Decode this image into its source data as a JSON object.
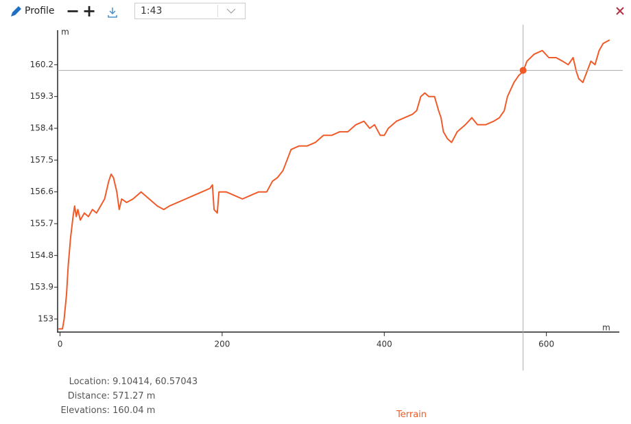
{
  "toolbar": {
    "title": "Profile",
    "scale": "1:43"
  },
  "chart_data": {
    "type": "line",
    "ylabel": "m",
    "xlabel": "m",
    "x": [
      -2,
      3,
      5,
      8,
      10,
      13,
      16,
      18,
      20,
      22,
      25,
      30,
      35,
      40,
      45,
      50,
      55,
      60,
      63,
      66,
      70,
      73,
      76,
      82,
      90,
      100,
      110,
      120,
      128,
      135,
      145,
      155,
      165,
      175,
      185,
      188,
      190,
      194,
      196,
      205,
      215,
      225,
      235,
      245,
      255,
      262,
      268,
      275,
      280,
      285,
      295,
      305,
      315,
      325,
      335,
      345,
      355,
      365,
      375,
      382,
      388,
      395,
      400,
      405,
      415,
      425,
      435,
      440,
      445,
      450,
      455,
      462,
      467,
      470,
      473,
      478,
      483,
      490,
      500,
      508,
      515,
      525,
      535,
      542,
      548,
      552,
      560,
      566,
      571,
      576,
      585,
      595,
      603,
      612,
      620,
      627,
      633,
      637,
      640,
      645,
      650,
      655,
      660,
      665,
      670,
      678
    ],
    "series": [
      {
        "name": "Terrain",
        "color": "#f05a28",
        "values": [
          152.72,
          152.72,
          153.0,
          153.7,
          154.5,
          155.3,
          155.9,
          156.2,
          155.9,
          156.1,
          155.8,
          156.0,
          155.9,
          156.1,
          156.0,
          156.2,
          156.4,
          156.9,
          157.1,
          157.0,
          156.6,
          156.1,
          156.4,
          156.3,
          156.4,
          156.6,
          156.4,
          156.2,
          156.1,
          156.2,
          156.3,
          156.4,
          156.5,
          156.6,
          156.7,
          156.8,
          156.1,
          156.0,
          156.6,
          156.6,
          156.5,
          156.4,
          156.5,
          156.6,
          156.6,
          156.9,
          157.0,
          157.2,
          157.5,
          157.8,
          157.9,
          157.9,
          158.0,
          158.2,
          158.2,
          158.3,
          158.3,
          158.5,
          158.6,
          158.4,
          158.5,
          158.2,
          158.2,
          158.4,
          158.6,
          158.7,
          158.8,
          158.9,
          159.3,
          159.4,
          159.3,
          159.3,
          158.9,
          158.7,
          158.3,
          158.1,
          158.0,
          158.3,
          158.5,
          158.7,
          158.5,
          158.5,
          158.6,
          158.7,
          158.9,
          159.3,
          159.7,
          159.9,
          160.0,
          160.3,
          160.5,
          160.6,
          160.4,
          160.4,
          160.3,
          160.2,
          160.4,
          160.0,
          159.8,
          159.7,
          160.0,
          160.3,
          160.2,
          160.6,
          160.8,
          160.9
        ]
      }
    ],
    "xlim": [
      -3,
      690
    ],
    "ylim": [
      152.65,
      161.1
    ],
    "xticks": [
      0,
      200,
      400,
      600
    ],
    "yticks": [
      153,
      153.9,
      154.8,
      155.7,
      156.6,
      157.5,
      158.4,
      159.3,
      160.2
    ],
    "cursor": {
      "x": 571.27,
      "y": 160.04
    }
  },
  "info": {
    "location_label": "Location:",
    "location": "9.10414, 60.57043",
    "distance_label": "Distance:",
    "distance": "571.27 m",
    "elevations_label": "Elevations:",
    "elevations": "160.04 m"
  }
}
